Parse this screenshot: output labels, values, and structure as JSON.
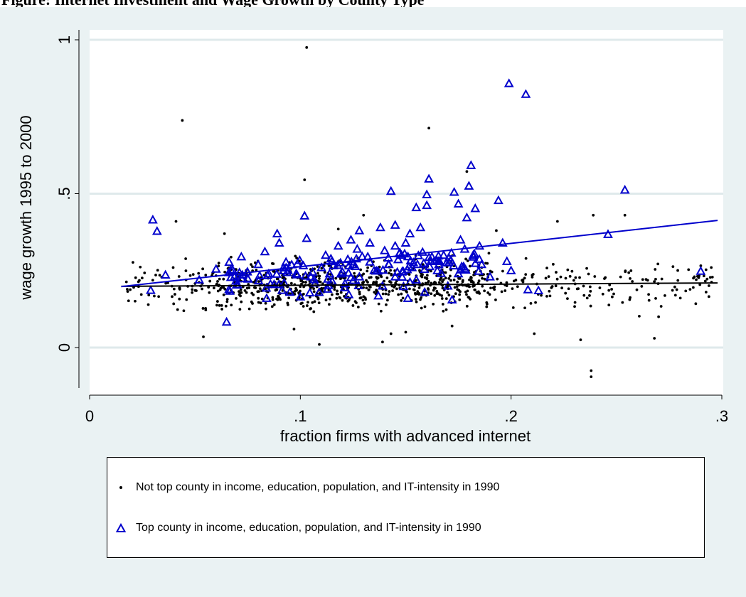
{
  "header": {
    "text": "Figure: Internet Investment and Wage Growth by County Type"
  },
  "chart_data": {
    "type": "scatter",
    "title": "",
    "xlabel": "fraction firms with advanced internet",
    "ylabel": "wage growth 1995 to 2000",
    "xlim": [
      0,
      0.3
    ],
    "ylim": [
      -0.14,
      1.04
    ],
    "xticks": [
      {
        "value": 0,
        "label": "0"
      },
      {
        "value": 0.1,
        "label": ".1"
      },
      {
        "value": 0.2,
        "label": ".2"
      },
      {
        "value": 0.3,
        "label": ".3"
      }
    ],
    "yticks": [
      {
        "value": 0,
        "label": "0"
      },
      {
        "value": 0.5,
        "label": ".5"
      },
      {
        "value": 1,
        "label": "1"
      }
    ],
    "grid": "horizontal",
    "legend_position": "bottom",
    "series": [
      {
        "name": "Not top county in income, education, population, and IT-intensity in 1990",
        "marker": "dot",
        "color": "#000000",
        "fit_line": [
          [
            0.015,
            0.199
          ],
          [
            0.298,
            0.21
          ]
        ],
        "points": [
          [
            0.103,
            0.975
          ],
          [
            0.044,
            0.738
          ],
          [
            0.161,
            0.713
          ],
          [
            0.102,
            0.545
          ],
          [
            0.179,
            0.572
          ],
          [
            0.238,
            -0.095
          ],
          [
            0.238,
            -0.075
          ],
          [
            0.233,
            0.025
          ],
          [
            0.239,
            0.43
          ],
          [
            0.254,
            0.43
          ],
          [
            0.222,
            0.41
          ],
          [
            0.054,
            0.035
          ],
          [
            0.109,
            0.01
          ],
          [
            0.139,
            0.018
          ],
          [
            0.143,
            0.045
          ],
          [
            0.268,
            0.03
          ],
          [
            0.041,
            0.41
          ],
          [
            0.064,
            0.37
          ],
          [
            0.118,
            0.385
          ],
          [
            0.193,
            0.38
          ],
          [
            0.13,
            0.43
          ],
          [
            0.097,
            0.06
          ],
          [
            0.15,
            0.05
          ],
          [
            0.172,
            0.07
          ],
          [
            0.211,
            0.045
          ],
          [
            0.287,
            0.23
          ],
          [
            0.295,
            0.26
          ],
          [
            0.278,
            0.17
          ],
          [
            0.27,
            0.1
          ]
        ]
      },
      {
        "name": "Top county in income, education, population, and IT-intensity in 1990",
        "marker": "triangle",
        "color": "#0000cc",
        "fit_line": [
          [
            0.015,
            0.198
          ],
          [
            0.298,
            0.413
          ]
        ],
        "points": [
          [
            0.199,
            0.858
          ],
          [
            0.207,
            0.823
          ],
          [
            0.181,
            0.592
          ],
          [
            0.161,
            0.548
          ],
          [
            0.16,
            0.497
          ],
          [
            0.173,
            0.505
          ],
          [
            0.18,
            0.525
          ],
          [
            0.194,
            0.478
          ],
          [
            0.254,
            0.512
          ],
          [
            0.143,
            0.508
          ],
          [
            0.16,
            0.462
          ],
          [
            0.175,
            0.467
          ],
          [
            0.03,
            0.415
          ],
          [
            0.032,
            0.378
          ],
          [
            0.102,
            0.428
          ],
          [
            0.183,
            0.452
          ],
          [
            0.179,
            0.422
          ],
          [
            0.155,
            0.455
          ],
          [
            0.138,
            0.39
          ],
          [
            0.128,
            0.38
          ],
          [
            0.145,
            0.398
          ],
          [
            0.246,
            0.368
          ],
          [
            0.089,
            0.37
          ],
          [
            0.103,
            0.355
          ],
          [
            0.065,
            0.083
          ],
          [
            0.029,
            0.186
          ],
          [
            0.29,
            0.248
          ],
          [
            0.213,
            0.185
          ],
          [
            0.208,
            0.188
          ],
          [
            0.172,
            0.155
          ],
          [
            0.151,
            0.16
          ],
          [
            0.137,
            0.168
          ],
          [
            0.123,
            0.172
          ],
          [
            0.095,
            0.18
          ],
          [
            0.084,
            0.16
          ],
          [
            0.072,
            0.295
          ],
          [
            0.067,
            0.252
          ],
          [
            0.052,
            0.22
          ],
          [
            0.036,
            0.236
          ],
          [
            0.075,
            0.225
          ],
          [
            0.085,
            0.24
          ],
          [
            0.092,
            0.26
          ],
          [
            0.098,
            0.24
          ],
          [
            0.105,
            0.23
          ],
          [
            0.11,
            0.26
          ],
          [
            0.115,
            0.28
          ],
          [
            0.12,
            0.245
          ],
          [
            0.125,
            0.27
          ],
          [
            0.128,
            0.23
          ],
          [
            0.132,
            0.295
          ],
          [
            0.135,
            0.25
          ],
          [
            0.14,
            0.315
          ],
          [
            0.142,
            0.27
          ],
          [
            0.145,
            0.23
          ],
          [
            0.148,
            0.3
          ],
          [
            0.15,
            0.34
          ],
          [
            0.153,
            0.26
          ],
          [
            0.155,
            0.22
          ],
          [
            0.158,
            0.31
          ],
          [
            0.162,
            0.28
          ],
          [
            0.165,
            0.25
          ],
          [
            0.168,
            0.3
          ],
          [
            0.17,
            0.2
          ],
          [
            0.175,
            0.24
          ],
          [
            0.178,
            0.32
          ],
          [
            0.182,
            0.3
          ],
          [
            0.185,
            0.33
          ],
          [
            0.19,
            0.23
          ],
          [
            0.196,
            0.34
          ],
          [
            0.198,
            0.28
          ],
          [
            0.2,
            0.25
          ],
          [
            0.112,
            0.3
          ],
          [
            0.118,
            0.33
          ],
          [
            0.124,
            0.35
          ],
          [
            0.107,
            0.21
          ],
          [
            0.113,
            0.19
          ],
          [
            0.1,
            0.165
          ],
          [
            0.09,
            0.34
          ],
          [
            0.08,
            0.27
          ],
          [
            0.06,
            0.255
          ],
          [
            0.157,
            0.39
          ],
          [
            0.145,
            0.33
          ],
          [
            0.133,
            0.34
          ],
          [
            0.127,
            0.32
          ],
          [
            0.166,
            0.28
          ],
          [
            0.152,
            0.37
          ],
          [
            0.139,
            0.2
          ],
          [
            0.121,
            0.195
          ],
          [
            0.146,
            0.245
          ],
          [
            0.159,
            0.18
          ],
          [
            0.186,
            0.27
          ],
          [
            0.176,
            0.35
          ]
        ]
      }
    ]
  }
}
